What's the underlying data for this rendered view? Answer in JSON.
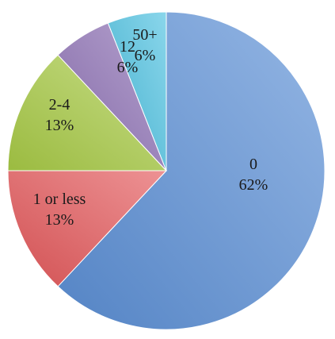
{
  "chart_data": {
    "type": "pie",
    "slices": [
      {
        "label": "0",
        "percent_label": "62%",
        "value": 62,
        "color": "#5b8fd6"
      },
      {
        "label": "1 or less",
        "percent_label": "13%",
        "value": 13,
        "color": "#e4585a"
      },
      {
        "label": "2-4",
        "percent_label": "13%",
        "value": 13,
        "color": "#a9cb46"
      },
      {
        "label": "12",
        "percent_label": "6%",
        "value": 6,
        "color": "#8e72b5"
      },
      {
        "label": "50+",
        "percent_label": "6%",
        "value": 6,
        "color": "#4bc0e0"
      }
    ],
    "start_angle_deg": 0,
    "direction": "clockwise",
    "legend": "none"
  }
}
